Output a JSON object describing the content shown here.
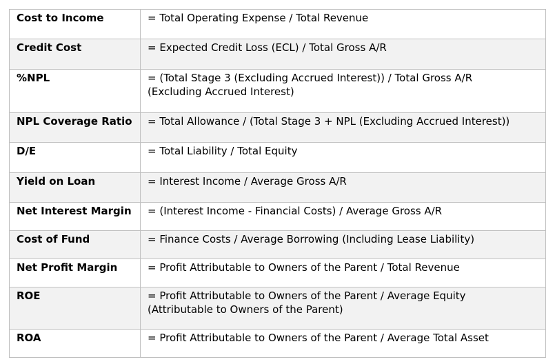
{
  "rows": [
    {
      "name": "Cost to Income",
      "formula": "= Total Operating Expense / Total Revenue",
      "shaded": false
    },
    {
      "name": "Credit Cost",
      "formula": "= Expected Credit Loss (ECL) / Total Gross A/R",
      "shaded": true
    },
    {
      "name": "%NPL",
      "formula": "= (Total Stage 3 (Excluding Accrued Interest)) / Total Gross A/R\n  (Excluding Accrued Interest)",
      "shaded": false
    },
    {
      "name": "NPL Coverage Ratio",
      "formula": "= Total Allowance / (Total Stage 3 + NPL (Excluding Accrued Interest))",
      "shaded": true
    },
    {
      "name": "D/E",
      "formula": "= Total Liability / Total Equity",
      "shaded": false
    },
    {
      "name": "Yield on Loan",
      "formula": "= Interest Income / Average Gross A/R",
      "shaded": true
    },
    {
      "name": "Net Interest Margin",
      "formula": "= (Interest Income - Financial Costs) / Average Gross A/R",
      "shaded": false
    },
    {
      "name": "Cost of Fund",
      "formula": "= Finance Costs / Average Borrowing (Including Lease Liability)",
      "shaded": true
    },
    {
      "name": "Net Profit Margin",
      "formula": "= Profit Attributable to Owners of the Parent / Total Revenue",
      "shaded": false
    },
    {
      "name": "ROE",
      "formula": "= Profit Attributable to Owners of the Parent / Average Equity\n  (Attributable to Owners of the Parent)",
      "shaded": true
    },
    {
      "name": "ROA",
      "formula": "= Profit Attributable to Owners of the Parent / Average Total Asset",
      "shaded": false
    }
  ]
}
